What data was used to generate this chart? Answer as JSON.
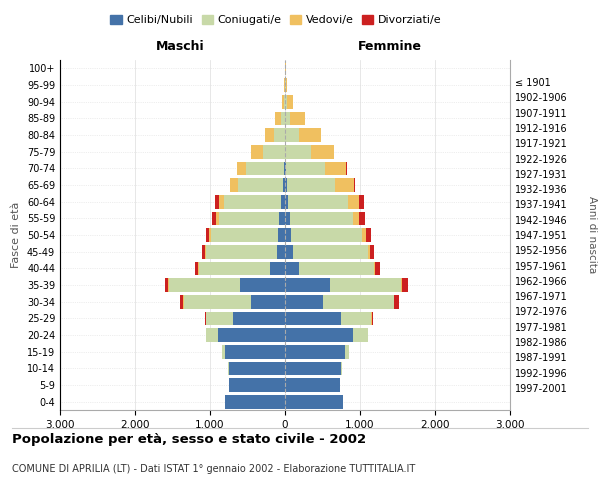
{
  "age_groups": [
    "0-4",
    "5-9",
    "10-14",
    "15-19",
    "20-24",
    "25-29",
    "30-34",
    "35-39",
    "40-44",
    "45-49",
    "50-54",
    "55-59",
    "60-64",
    "65-69",
    "70-74",
    "75-79",
    "80-84",
    "85-89",
    "90-94",
    "95-99",
    "100+"
  ],
  "birth_years": [
    "1997-2001",
    "1992-1996",
    "1987-1991",
    "1982-1986",
    "1977-1981",
    "1972-1976",
    "1967-1971",
    "1962-1966",
    "1957-1961",
    "1952-1956",
    "1947-1951",
    "1942-1946",
    "1937-1941",
    "1932-1936",
    "1927-1931",
    "1922-1926",
    "1917-1921",
    "1912-1916",
    "1907-1911",
    "1902-1906",
    "≤ 1901"
  ],
  "males": {
    "celibi": [
      800,
      750,
      750,
      800,
      900,
      700,
      450,
      600,
      200,
      110,
      90,
      80,
      60,
      30,
      15,
      0,
      0,
      0,
      0,
      0,
      0
    ],
    "coniugati": [
      0,
      0,
      10,
      40,
      150,
      350,
      900,
      950,
      950,
      950,
      900,
      800,
      750,
      600,
      500,
      300,
      150,
      60,
      15,
      5,
      2
    ],
    "vedovi": [
      0,
      0,
      0,
      0,
      0,
      5,
      5,
      5,
      5,
      10,
      20,
      40,
      70,
      100,
      120,
      150,
      120,
      80,
      25,
      5,
      2
    ],
    "divorziati": [
      0,
      0,
      0,
      0,
      5,
      10,
      40,
      50,
      50,
      40,
      50,
      60,
      50,
      10,
      10,
      5,
      0,
      0,
      0,
      0,
      0
    ]
  },
  "females": {
    "nubili": [
      770,
      730,
      750,
      800,
      900,
      750,
      500,
      600,
      180,
      100,
      80,
      60,
      40,
      20,
      10,
      0,
      0,
      0,
      0,
      0,
      0
    ],
    "coniugate": [
      0,
      0,
      10,
      50,
      200,
      400,
      950,
      950,
      1000,
      1000,
      950,
      850,
      800,
      650,
      520,
      350,
      180,
      70,
      20,
      8,
      2
    ],
    "vedove": [
      0,
      0,
      0,
      0,
      0,
      5,
      5,
      10,
      20,
      30,
      50,
      80,
      150,
      250,
      280,
      300,
      300,
      200,
      80,
      20,
      5
    ],
    "divorziate": [
      0,
      0,
      0,
      0,
      5,
      20,
      60,
      80,
      60,
      50,
      60,
      70,
      60,
      15,
      10,
      5,
      0,
      0,
      0,
      0,
      0
    ]
  },
  "colors": {
    "celibi": "#4472a8",
    "coniugati": "#c8d9a8",
    "vedovi": "#f0c060",
    "divorziati": "#cc2020"
  },
  "xlim": 3000,
  "title": "Popolazione per età, sesso e stato civile - 2002",
  "subtitle": "COMUNE DI APRILIA (LT) - Dati ISTAT 1° gennaio 2002 - Elaborazione TUTTITALIA.IT",
  "ylabel_left": "Fasce di età",
  "ylabel_right": "Anni di nascita",
  "xlabel_left": "Maschi",
  "xlabel_right": "Femmine"
}
